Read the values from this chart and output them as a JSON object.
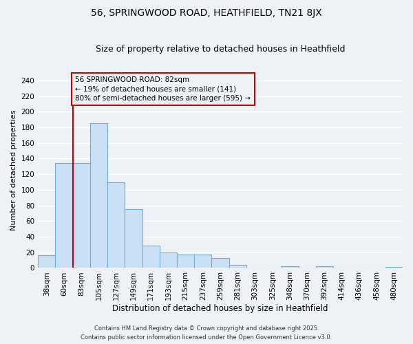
{
  "title": "56, SPRINGWOOD ROAD, HEATHFIELD, TN21 8JX",
  "subtitle": "Size of property relative to detached houses in Heathfield",
  "xlabel": "Distribution of detached houses by size in Heathfield",
  "ylabel": "Number of detached properties",
  "footer_line1": "Contains HM Land Registry data © Crown copyright and database right 2025.",
  "footer_line2": "Contains public sector information licensed under the Open Government Licence v3.0.",
  "bar_labels": [
    "38sqm",
    "60sqm",
    "83sqm",
    "105sqm",
    "127sqm",
    "149sqm",
    "171sqm",
    "193sqm",
    "215sqm",
    "237sqm",
    "259sqm",
    "281sqm",
    "303sqm",
    "325sqm",
    "348sqm",
    "370sqm",
    "392sqm",
    "414sqm",
    "436sqm",
    "458sqm",
    "480sqm"
  ],
  "bar_values": [
    16,
    134,
    134,
    185,
    110,
    75,
    29,
    20,
    17,
    17,
    13,
    4,
    0,
    0,
    2,
    0,
    2,
    0,
    0,
    0,
    1
  ],
  "bar_color": "#cce0f5",
  "bar_edge_color": "#6aaed6",
  "ylim": [
    0,
    250
  ],
  "yticks": [
    0,
    20,
    40,
    60,
    80,
    100,
    120,
    140,
    160,
    180,
    200,
    220,
    240
  ],
  "vline_x_index": 2,
  "vline_color": "#cc0000",
  "annotation_line1": "56 SPRINGWOOD ROAD: 82sqm",
  "annotation_line2": "← 19% of detached houses are smaller (141)",
  "annotation_line3": "80% of semi-detached houses are larger (595) →",
  "bg_color": "#eef2f7",
  "grid_color": "#ffffff",
  "title_fontsize": 10,
  "subtitle_fontsize": 9,
  "tick_fontsize": 7.5,
  "ylabel_fontsize": 8,
  "xlabel_fontsize": 8.5,
  "footer_fontsize": 6
}
